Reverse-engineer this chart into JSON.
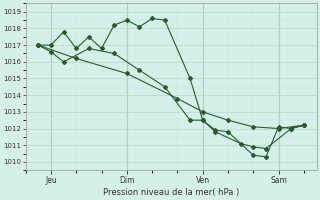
{
  "xlabel": "Pression niveau de la mer( hPa )",
  "bg_color": "#d4f0e8",
  "plot_bg_color": "#d4f0e8",
  "grid_major_color": "#b8d8c8",
  "grid_minor_color": "#c8e8d8",
  "line_color": "#2d5a2d",
  "ylim": [
    1009.5,
    1019.5
  ],
  "yticks": [
    1010,
    1011,
    1012,
    1013,
    1014,
    1015,
    1016,
    1017,
    1018,
    1019
  ],
  "xtick_labels": [
    "Jeu",
    "Dim",
    "Ven",
    "Sam"
  ],
  "xtick_positions": [
    1,
    4,
    7,
    10
  ],
  "xlim": [
    0,
    11.5
  ],
  "line1_x": [
    0.5,
    1.0,
    1.5,
    2.0,
    2.5,
    3.0,
    3.5,
    4.0,
    4.5,
    5.0,
    5.5,
    6.5,
    7.0,
    7.5,
    8.0,
    9.0,
    9.5,
    10.0,
    10.5,
    11.0
  ],
  "line1_y": [
    1017.0,
    1017.0,
    1017.8,
    1016.8,
    1017.5,
    1016.8,
    1018.2,
    1018.5,
    1018.1,
    1018.6,
    1018.5,
    1015.0,
    1012.5,
    1011.9,
    1011.8,
    1010.4,
    1010.3,
    1012.1,
    1012.0,
    1012.2
  ],
  "line2_x": [
    0.5,
    1.0,
    1.5,
    2.5,
    3.5,
    4.5,
    5.5,
    6.5,
    7.0,
    7.5,
    8.5,
    9.0,
    9.5,
    10.5,
    11.0
  ],
  "line2_y": [
    1017.0,
    1016.6,
    1016.0,
    1016.8,
    1016.5,
    1015.5,
    1014.5,
    1012.5,
    1012.5,
    1011.8,
    1011.1,
    1010.9,
    1010.8,
    1012.0,
    1012.2
  ],
  "line3_x": [
    0.5,
    2.0,
    4.0,
    6.0,
    7.0,
    8.0,
    9.0,
    10.0,
    11.0
  ],
  "line3_y": [
    1017.0,
    1016.2,
    1015.3,
    1013.8,
    1013.0,
    1012.5,
    1012.1,
    1012.0,
    1012.2
  ],
  "vlines_x": [
    1,
    4,
    7,
    10
  ]
}
